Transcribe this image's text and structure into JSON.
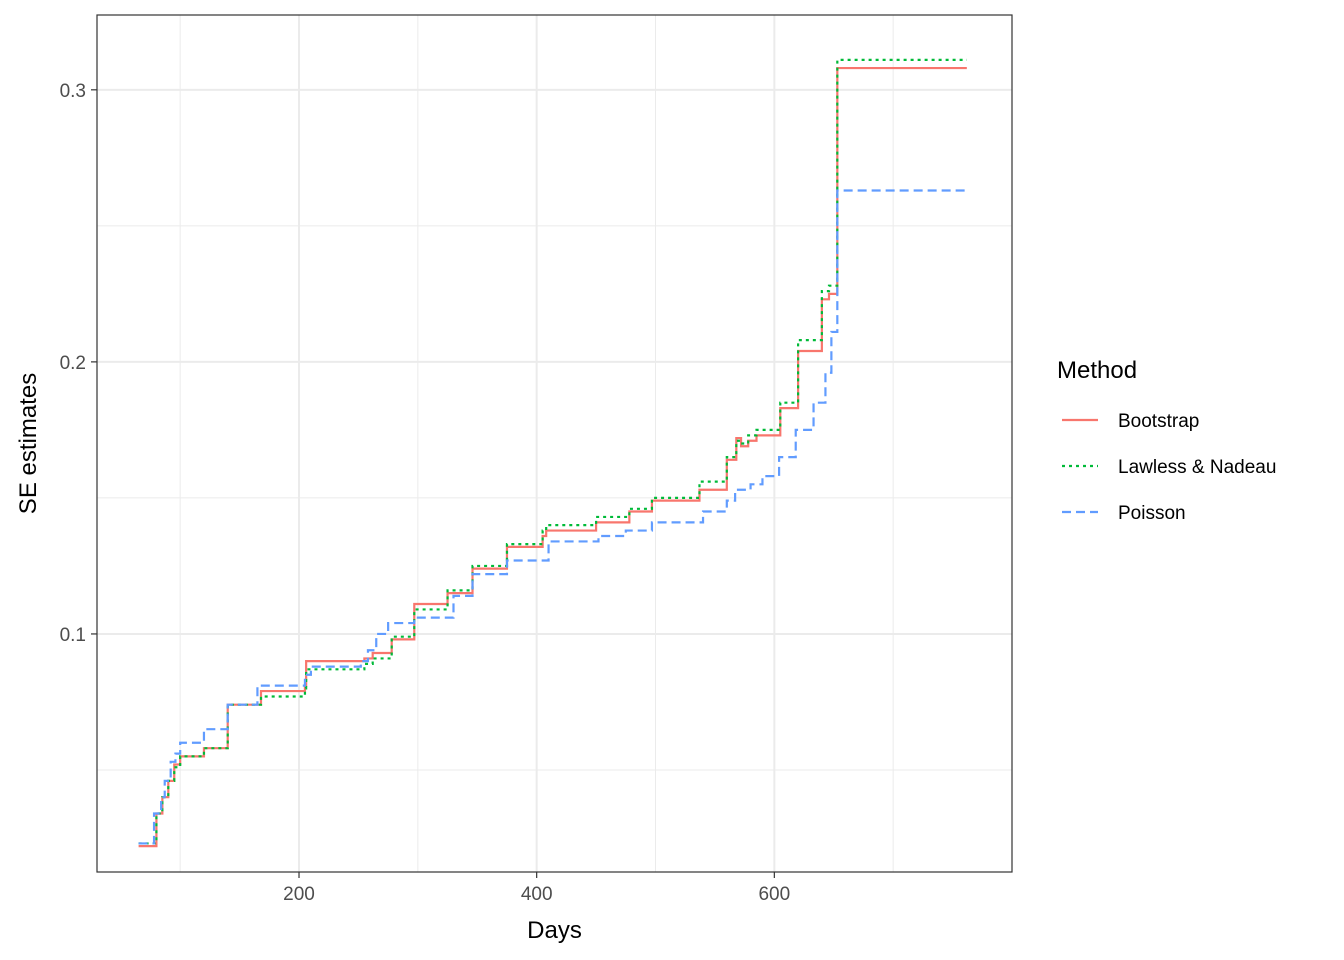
{
  "chart_data": {
    "type": "line",
    "step": true,
    "xlabel": "Days",
    "ylabel": "SE estimates",
    "xlim": [
      30,
      800
    ],
    "ylim": [
      0.0125,
      0.3275
    ],
    "x_ticks": [
      200,
      400,
      600
    ],
    "x_tick_labels": [
      "200",
      "400",
      "600"
    ],
    "x_minor_ticks": [
      100,
      300,
      500,
      700
    ],
    "y_ticks": [
      0.1,
      0.2,
      0.3
    ],
    "y_tick_labels": [
      "0.1",
      "0.2",
      "0.3"
    ],
    "y_minor_ticks": [
      0.05,
      0.15,
      0.25
    ],
    "grid": true,
    "legend": {
      "title": "Method",
      "position": "right"
    },
    "series": [
      {
        "name": "Bootstrap",
        "color": "#F8766D",
        "linestyle": "solid",
        "points": [
          [
            65,
            0.022
          ],
          [
            80,
            0.034
          ],
          [
            85,
            0.04
          ],
          [
            90,
            0.046
          ],
          [
            95,
            0.052
          ],
          [
            100,
            0.055
          ],
          [
            120,
            0.058
          ],
          [
            140,
            0.074
          ],
          [
            168,
            0.079
          ],
          [
            205,
            0.081
          ],
          [
            206,
            0.09
          ],
          [
            255,
            0.091
          ],
          [
            262,
            0.093
          ],
          [
            278,
            0.098
          ],
          [
            297,
            0.111
          ],
          [
            325,
            0.115
          ],
          [
            346,
            0.124
          ],
          [
            375,
            0.132
          ],
          [
            405,
            0.136
          ],
          [
            408,
            0.138
          ],
          [
            450,
            0.141
          ],
          [
            478,
            0.145
          ],
          [
            497,
            0.149
          ],
          [
            537,
            0.153
          ],
          [
            560,
            0.164
          ],
          [
            568,
            0.172
          ],
          [
            572,
            0.169
          ],
          [
            578,
            0.171
          ],
          [
            585,
            0.173
          ],
          [
            605,
            0.183
          ],
          [
            620,
            0.204
          ],
          [
            640,
            0.223
          ],
          [
            646,
            0.225
          ],
          [
            653,
            0.308
          ],
          [
            762,
            0.308
          ]
        ]
      },
      {
        "name": "Lawless & Nadeau",
        "color": "#00BA38",
        "linestyle": "dotted",
        "points": [
          [
            65,
            0.023
          ],
          [
            80,
            0.034
          ],
          [
            85,
            0.04
          ],
          [
            90,
            0.046
          ],
          [
            95,
            0.051
          ],
          [
            100,
            0.055
          ],
          [
            120,
            0.058
          ],
          [
            140,
            0.074
          ],
          [
            168,
            0.077
          ],
          [
            205,
            0.08
          ],
          [
            206,
            0.087
          ],
          [
            255,
            0.089
          ],
          [
            262,
            0.091
          ],
          [
            278,
            0.099
          ],
          [
            297,
            0.109
          ],
          [
            325,
            0.116
          ],
          [
            346,
            0.125
          ],
          [
            375,
            0.133
          ],
          [
            405,
            0.138
          ],
          [
            408,
            0.14
          ],
          [
            450,
            0.143
          ],
          [
            478,
            0.146
          ],
          [
            497,
            0.15
          ],
          [
            537,
            0.156
          ],
          [
            560,
            0.165
          ],
          [
            568,
            0.171
          ],
          [
            572,
            0.17
          ],
          [
            578,
            0.173
          ],
          [
            585,
            0.175
          ],
          [
            605,
            0.185
          ],
          [
            620,
            0.208
          ],
          [
            640,
            0.226
          ],
          [
            646,
            0.228
          ],
          [
            653,
            0.311
          ],
          [
            762,
            0.311
          ]
        ]
      },
      {
        "name": "Poisson",
        "color": "#619CFF",
        "linestyle": "dashed",
        "points": [
          [
            65,
            0.023
          ],
          [
            78,
            0.034
          ],
          [
            84,
            0.04
          ],
          [
            87,
            0.046
          ],
          [
            92,
            0.053
          ],
          [
            96,
            0.056
          ],
          [
            100,
            0.06
          ],
          [
            120,
            0.065
          ],
          [
            140,
            0.074
          ],
          [
            165,
            0.081
          ],
          [
            205,
            0.085
          ],
          [
            210,
            0.088
          ],
          [
            252,
            0.09
          ],
          [
            258,
            0.094
          ],
          [
            265,
            0.1
          ],
          [
            275,
            0.104
          ],
          [
            297,
            0.106
          ],
          [
            330,
            0.114
          ],
          [
            346,
            0.122
          ],
          [
            375,
            0.127
          ],
          [
            410,
            0.134
          ],
          [
            452,
            0.136
          ],
          [
            475,
            0.138
          ],
          [
            497,
            0.141
          ],
          [
            540,
            0.145
          ],
          [
            560,
            0.149
          ],
          [
            567,
            0.153
          ],
          [
            580,
            0.155
          ],
          [
            590,
            0.158
          ],
          [
            604,
            0.165
          ],
          [
            618,
            0.175
          ],
          [
            633,
            0.185
          ],
          [
            643,
            0.196
          ],
          [
            648,
            0.211
          ],
          [
            653,
            0.263
          ],
          [
            762,
            0.263
          ]
        ]
      }
    ]
  }
}
